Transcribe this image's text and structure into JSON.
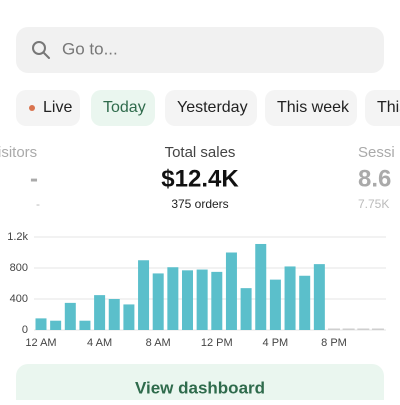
{
  "search": {
    "placeholder": "Go to..."
  },
  "tabs": [
    "Live",
    "Today",
    "Yesterday",
    "This week",
    "This"
  ],
  "selected_tab": 1,
  "metrics": [
    {
      "label": "isitors",
      "value": "-",
      "sub": "-"
    },
    {
      "label": "Total sales",
      "value": "$12.4K",
      "sub": "375 orders"
    },
    {
      "label": "Sessi",
      "value": "8.6",
      "sub": "7.75K"
    }
  ],
  "chart_data": {
    "type": "bar",
    "categories": [
      "12 AM",
      null,
      null,
      null,
      "4 AM",
      null,
      null,
      null,
      "8 AM",
      null,
      null,
      null,
      "12 PM",
      null,
      null,
      null,
      "4 PM",
      null,
      null,
      null,
      "8 PM",
      null,
      null,
      null
    ],
    "values": [
      150,
      120,
      350,
      120,
      450,
      400,
      330,
      900,
      730,
      810,
      770,
      780,
      750,
      1000,
      540,
      1110,
      650,
      820,
      700,
      850,
      0,
      0,
      0,
      0
    ],
    "color": "#5bbfcb",
    "ylim": [
      0,
      1200
    ],
    "yticks": [
      0,
      400,
      800,
      {
        "value": 1200,
        "label": "1.2k"
      }
    ],
    "grid": true
  },
  "button": {
    "label": "View dashboard"
  }
}
